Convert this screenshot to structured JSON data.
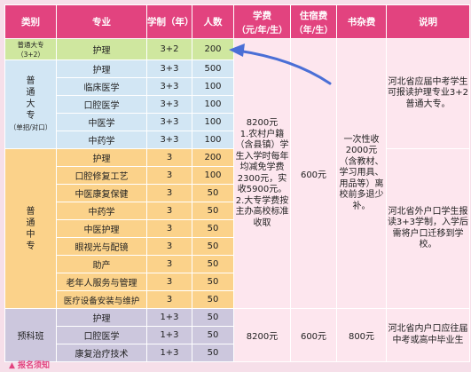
{
  "headers": {
    "category": "类别",
    "major": "专业",
    "duration": "学制（年）",
    "count": "人数",
    "tuition": "学费",
    "tuition_unit": "（元/年/生）",
    "housing": "住宿费",
    "housing_unit": "（年/生）",
    "books": "书杂费",
    "note": "说明"
  },
  "categories": {
    "c1_line1": "普通大专",
    "c1_line2": "（3+2）",
    "c2_main": "普通大专",
    "c2_sub": "（单招/对口）",
    "c3": "普通中专",
    "c4": "预科班"
  },
  "rows": [
    {
      "major": "护理",
      "duration": "3+2",
      "count": "200"
    },
    {
      "major": "护理",
      "duration": "3+3",
      "count": "500"
    },
    {
      "major": "临床医学",
      "duration": "3+3",
      "count": "100"
    },
    {
      "major": "口腔医学",
      "duration": "3+3",
      "count": "100"
    },
    {
      "major": "中医学",
      "duration": "3+3",
      "count": "100"
    },
    {
      "major": "中药学",
      "duration": "3+3",
      "count": "100"
    },
    {
      "major": "护理",
      "duration": "3",
      "count": "200"
    },
    {
      "major": "口腔修复工艺",
      "duration": "3",
      "count": "100"
    },
    {
      "major": "中医康复保健",
      "duration": "3",
      "count": "50"
    },
    {
      "major": "中药学",
      "duration": "3",
      "count": "50"
    },
    {
      "major": "中医护理",
      "duration": "3",
      "count": "50"
    },
    {
      "major": "眼视光与配镜",
      "duration": "3",
      "count": "50"
    },
    {
      "major": "助产",
      "duration": "3",
      "count": "50"
    },
    {
      "major": "老年人服务与管理",
      "duration": "3",
      "count": "50"
    },
    {
      "major": "医疗设备安装与维护",
      "duration": "3",
      "count": "50"
    },
    {
      "major": "护理",
      "duration": "1+3",
      "count": "50"
    },
    {
      "major": "口腔医学",
      "duration": "1+3",
      "count": "50"
    },
    {
      "major": "康复治疗技术",
      "duration": "1+3",
      "count": "50"
    }
  ],
  "fees": {
    "tuition_main": "8200元\n1.农村户籍（含县镇）学生入学时每年均减免学费2300元，实收5900元。\n2.大专学费按主办高校标准收取",
    "housing_main": "600元",
    "books_main": "一次性收2000元（含教材、学习用具、用品等）离校前多退少补。",
    "tuition_pre": "8200元",
    "housing_pre": "600元",
    "books_pre": "800元"
  },
  "notes": {
    "n1": "河北省应届中考学生可报读护理专业3+2普通大专。",
    "n2": "河北省外户口学生报读3+3学制，入学后需将户口迁移到学校。",
    "n3": "河北省内户口应往届中考或高中毕业生"
  },
  "footer": "▲ 报名须知"
}
